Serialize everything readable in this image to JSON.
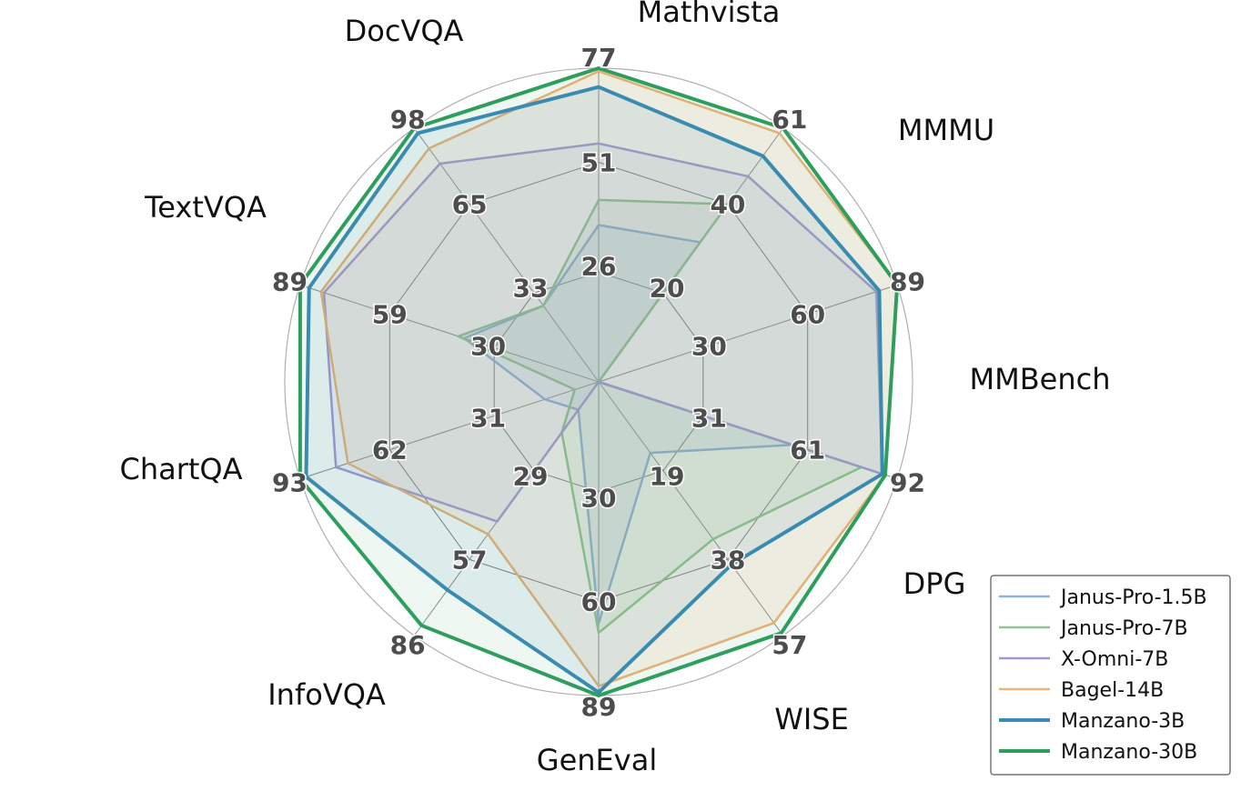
{
  "chart_data": {
    "type": "radar",
    "title": "",
    "axes": [
      "Mathvista",
      "MMMU",
      "MMBench",
      "DPG",
      "WISE",
      "GenEval",
      "InfoVQA",
      "ChartQA",
      "TextVQA",
      "DocVQA"
    ],
    "ticks": [
      [
        "26",
        "51",
        "77"
      ],
      [
        "20",
        "40",
        "61"
      ],
      [
        "30",
        "60",
        "89"
      ],
      [
        "31",
        "61",
        "92"
      ],
      [
        "19",
        "38",
        "57"
      ],
      [
        "30",
        "60",
        "89"
      ],
      [
        "29",
        "57",
        "86"
      ],
      [
        "31",
        "62",
        "93"
      ],
      [
        "30",
        "59",
        "89"
      ],
      [
        "33",
        "65",
        "98"
      ]
    ],
    "series": [
      {
        "name": "Janus-Pro-1.5B",
        "color": "#8fb0e0",
        "line_width": 2.5,
        "fill_opacity": 0.12,
        "values": [
          0.5,
          0.55,
          0.0,
          0.65,
          0.28,
          0.77,
          0.11,
          0.18,
          0.45,
          0.3
        ]
      },
      {
        "name": "Janus-Pro-7B",
        "color": "#8cc78f",
        "line_width": 2.5,
        "fill_opacity": 0.12,
        "values": [
          0.58,
          0.7,
          0.0,
          0.88,
          0.62,
          0.8,
          0.2,
          0.08,
          0.47,
          0.3
        ]
      },
      {
        "name": "X-Omni-7B",
        "color": "#a397d8",
        "line_width": 2.5,
        "fill_opacity": 0.1,
        "values": [
          0.76,
          0.81,
          0.93,
          0.95,
          0.0,
          0.0,
          0.55,
          0.88,
          0.92,
          0.86
        ]
      },
      {
        "name": "Bagel-14B",
        "color": "#f0b277",
        "line_width": 2.5,
        "fill_opacity": 0.14,
        "values": [
          0.99,
          0.98,
          1.0,
          0.96,
          0.95,
          0.97,
          0.6,
          0.84,
          0.93,
          0.92
        ]
      },
      {
        "name": "Manzano-3B",
        "color": "#3a8ab7",
        "line_width": 4,
        "fill_opacity": 0.1,
        "values": [
          0.94,
          0.89,
          0.94,
          0.95,
          0.72,
          0.99,
          0.82,
          0.98,
          0.97,
          0.98
        ]
      },
      {
        "name": "Manzano-30B",
        "color": "#2e9e5c",
        "line_width": 4,
        "fill_opacity": 0.08,
        "values": [
          1.0,
          1.0,
          1.0,
          0.96,
          0.99,
          1.0,
          0.96,
          1.0,
          1.0,
          1.0
        ]
      }
    ],
    "grid": true,
    "legend": "bottom-right"
  }
}
